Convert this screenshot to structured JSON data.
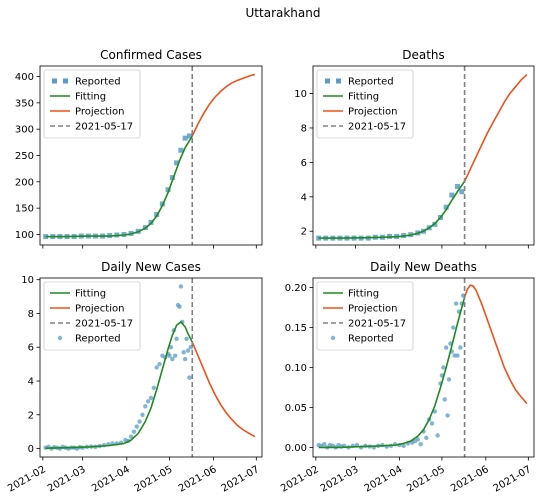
{
  "figure_title": "Uttarakhand",
  "x_tick_labels": [
    "2021-02",
    "2021-03",
    "2021-04",
    "2021-05",
    "2021-06",
    "2021-07"
  ],
  "colors": {
    "reported": "#5b9bc7",
    "fitting": "#1f8a1f",
    "projection": "#f0501a",
    "vline": "#808080"
  },
  "chart_data": [
    {
      "type": "line",
      "title": "Confirmed Cases",
      "ylim": [
        80,
        420
      ],
      "yticks": [
        100,
        150,
        200,
        250,
        300,
        350,
        400
      ],
      "xlim": [
        "2021-01-30",
        "2021-07-05"
      ],
      "vline": "2021-05-17",
      "legend": [
        "Reported",
        "Fitting",
        "Projection",
        "2021-05-17"
      ],
      "legend_position": "upper-left",
      "reported_style": "square",
      "series": [
        {
          "name": "Reported",
          "x": [
            "2021-02-03",
            "2021-02-08",
            "2021-02-13",
            "2021-02-18",
            "2021-02-23",
            "2021-02-28",
            "2021-03-05",
            "2021-03-10",
            "2021-03-15",
            "2021-03-20",
            "2021-03-25",
            "2021-03-30",
            "2021-04-04",
            "2021-04-09",
            "2021-04-14",
            "2021-04-18",
            "2021-04-22",
            "2021-04-26",
            "2021-04-30",
            "2021-05-03",
            "2021-05-06",
            "2021-05-09",
            "2021-05-12",
            "2021-05-15"
          ],
          "y": [
            96,
            96,
            96,
            96,
            96,
            97,
            97,
            97,
            97,
            98,
            99,
            100,
            102,
            106,
            113,
            123,
            138,
            158,
            185,
            208,
            236,
            260,
            283,
            287
          ]
        },
        {
          "name": "Fitting",
          "x": [
            "2021-02-03",
            "2021-02-18",
            "2021-03-05",
            "2021-03-20",
            "2021-03-30",
            "2021-04-04",
            "2021-04-09",
            "2021-04-14",
            "2021-04-18",
            "2021-04-22",
            "2021-04-26",
            "2021-04-30",
            "2021-05-04",
            "2021-05-08",
            "2021-05-12",
            "2021-05-17"
          ],
          "y": [
            96,
            96,
            97,
            97,
            99,
            101,
            105,
            112,
            121,
            135,
            155,
            180,
            210,
            240,
            265,
            287
          ]
        },
        {
          "name": "Projection",
          "x": [
            "2021-05-17",
            "2021-05-21",
            "2021-05-25",
            "2021-05-29",
            "2021-06-02",
            "2021-06-06",
            "2021-06-10",
            "2021-06-14",
            "2021-06-18",
            "2021-06-22",
            "2021-06-26",
            "2021-06-30"
          ],
          "y": [
            287,
            310,
            330,
            347,
            361,
            372,
            381,
            388,
            393,
            397,
            401,
            404
          ]
        }
      ]
    },
    {
      "type": "line",
      "title": "Deaths",
      "ylim": [
        1.2,
        11.6
      ],
      "yticks": [
        2,
        4,
        6,
        8,
        10
      ],
      "xlim": [
        "2021-01-30",
        "2021-07-05"
      ],
      "vline": "2021-05-17",
      "legend": [
        "Reported",
        "Fitting",
        "Projection",
        "2021-05-17"
      ],
      "legend_position": "upper-left",
      "reported_style": "square",
      "series": [
        {
          "name": "Reported",
          "x": [
            "2021-02-03",
            "2021-02-08",
            "2021-02-13",
            "2021-02-18",
            "2021-02-23",
            "2021-02-28",
            "2021-03-05",
            "2021-03-10",
            "2021-03-15",
            "2021-03-20",
            "2021-03-25",
            "2021-03-30",
            "2021-04-04",
            "2021-04-09",
            "2021-04-14",
            "2021-04-18",
            "2021-04-22",
            "2021-04-26",
            "2021-04-30",
            "2021-05-04",
            "2021-05-08",
            "2021-05-12",
            "2021-05-15"
          ],
          "y": [
            1.6,
            1.6,
            1.6,
            1.6,
            1.6,
            1.6,
            1.6,
            1.6,
            1.65,
            1.65,
            1.7,
            1.7,
            1.75,
            1.8,
            1.9,
            2.0,
            2.2,
            2.4,
            2.8,
            3.4,
            4.1,
            4.6,
            4.3
          ]
        },
        {
          "name": "Fitting",
          "x": [
            "2021-02-03",
            "2021-02-18",
            "2021-03-05",
            "2021-03-20",
            "2021-03-30",
            "2021-04-04",
            "2021-04-09",
            "2021-04-14",
            "2021-04-18",
            "2021-04-22",
            "2021-04-26",
            "2021-04-30",
            "2021-05-04",
            "2021-05-08",
            "2021-05-12",
            "2021-05-17"
          ],
          "y": [
            1.6,
            1.6,
            1.62,
            1.65,
            1.68,
            1.72,
            1.78,
            1.88,
            2.0,
            2.2,
            2.45,
            2.8,
            3.25,
            3.8,
            4.3,
            4.9
          ]
        },
        {
          "name": "Projection",
          "x": [
            "2021-05-17",
            "2021-05-21",
            "2021-05-25",
            "2021-05-29",
            "2021-06-02",
            "2021-06-06",
            "2021-06-10",
            "2021-06-14",
            "2021-06-18",
            "2021-06-22",
            "2021-06-26",
            "2021-06-30"
          ],
          "y": [
            4.9,
            5.6,
            6.3,
            7.0,
            7.7,
            8.3,
            8.9,
            9.5,
            10.0,
            10.4,
            10.8,
            11.1
          ]
        }
      ]
    },
    {
      "type": "line",
      "title": "Daily New Cases",
      "ylim": [
        -0.5,
        10.1
      ],
      "yticks": [
        0,
        2,
        4,
        6,
        8,
        10
      ],
      "xlim": [
        "2021-01-30",
        "2021-07-05"
      ],
      "vline": "2021-05-17",
      "legend": [
        "Fitting",
        "Projection",
        "2021-05-17",
        "Reported"
      ],
      "legend_position": "upper-left",
      "reported_style": "dot",
      "series": [
        {
          "name": "Reported",
          "x": [
            "2021-02-03",
            "2021-02-05",
            "2021-02-07",
            "2021-02-09",
            "2021-02-11",
            "2021-02-13",
            "2021-02-15",
            "2021-02-17",
            "2021-02-19",
            "2021-02-21",
            "2021-02-23",
            "2021-02-25",
            "2021-02-27",
            "2021-03-01",
            "2021-03-04",
            "2021-03-07",
            "2021-03-10",
            "2021-03-13",
            "2021-03-16",
            "2021-03-19",
            "2021-03-22",
            "2021-03-25",
            "2021-03-28",
            "2021-03-31",
            "2021-04-02",
            "2021-04-04",
            "2021-04-06",
            "2021-04-08",
            "2021-04-10",
            "2021-04-12",
            "2021-04-14",
            "2021-04-16",
            "2021-04-18",
            "2021-04-20",
            "2021-04-22",
            "2021-04-24",
            "2021-04-26",
            "2021-04-28",
            "2021-04-30",
            "2021-05-01",
            "2021-05-02",
            "2021-05-03",
            "2021-05-04",
            "2021-05-05",
            "2021-05-06",
            "2021-05-07",
            "2021-05-08",
            "2021-05-09",
            "2021-05-10",
            "2021-05-11",
            "2021-05-12",
            "2021-05-13",
            "2021-05-14",
            "2021-05-15",
            "2021-05-16"
          ],
          "y": [
            0.05,
            0.1,
            0.0,
            0.08,
            0.05,
            0.0,
            0.1,
            0.05,
            0.0,
            0.06,
            0.05,
            0.0,
            0.08,
            0.05,
            0.1,
            0.12,
            0.1,
            0.15,
            0.2,
            0.25,
            0.3,
            0.3,
            0.35,
            0.5,
            0.45,
            0.7,
            1.0,
            1.3,
            1.6,
            2.0,
            2.5,
            2.8,
            3.0,
            3.6,
            4.8,
            5.0,
            5.5,
            5.4,
            5.6,
            5.5,
            6.0,
            5.3,
            7.0,
            5.5,
            6.5,
            8.5,
            8.4,
            9.6,
            7.5,
            5.7,
            5.3,
            6.5,
            5.8,
            4.2,
            6.0
          ]
        },
        {
          "name": "Fitting",
          "x": [
            "2021-02-03",
            "2021-02-18",
            "2021-03-05",
            "2021-03-20",
            "2021-03-30",
            "2021-04-04",
            "2021-04-09",
            "2021-04-14",
            "2021-04-18",
            "2021-04-22",
            "2021-04-26",
            "2021-04-30",
            "2021-05-03",
            "2021-05-06",
            "2021-05-09",
            "2021-05-12",
            "2021-05-14",
            "2021-05-17"
          ],
          "y": [
            0.02,
            0.05,
            0.1,
            0.18,
            0.3,
            0.5,
            0.9,
            1.6,
            2.4,
            3.5,
            4.7,
            5.9,
            6.7,
            7.3,
            7.5,
            7.2,
            6.8,
            6.3
          ]
        },
        {
          "name": "Projection",
          "x": [
            "2021-05-17",
            "2021-05-21",
            "2021-05-25",
            "2021-05-29",
            "2021-06-02",
            "2021-06-06",
            "2021-06-10",
            "2021-06-14",
            "2021-06-18",
            "2021-06-22",
            "2021-06-26",
            "2021-06-30"
          ],
          "y": [
            6.3,
            5.5,
            4.7,
            3.9,
            3.2,
            2.6,
            2.1,
            1.7,
            1.35,
            1.1,
            0.9,
            0.7
          ]
        }
      ]
    },
    {
      "type": "line",
      "title": "Daily New Deaths",
      "ylim": [
        -0.012,
        0.212
      ],
      "yticks": [
        0.0,
        0.05,
        0.1,
        0.15,
        0.2
      ],
      "xlim": [
        "2021-01-30",
        "2021-07-05"
      ],
      "vline": "2021-05-17",
      "legend": [
        "Fitting",
        "Projection",
        "2021-05-17",
        "Reported"
      ],
      "legend_position": "upper-left",
      "reported_style": "dot",
      "series": [
        {
          "name": "Reported",
          "x": [
            "2021-02-03",
            "2021-02-05",
            "2021-02-07",
            "2021-02-09",
            "2021-02-11",
            "2021-02-13",
            "2021-02-15",
            "2021-02-17",
            "2021-02-19",
            "2021-02-21",
            "2021-02-24",
            "2021-02-27",
            "2021-03-02",
            "2021-03-05",
            "2021-03-08",
            "2021-03-11",
            "2021-03-14",
            "2021-03-17",
            "2021-03-20",
            "2021-03-23",
            "2021-03-26",
            "2021-03-29",
            "2021-04-01",
            "2021-04-04",
            "2021-04-07",
            "2021-04-10",
            "2021-04-12",
            "2021-04-14",
            "2021-04-16",
            "2021-04-18",
            "2021-04-20",
            "2021-04-22",
            "2021-04-24",
            "2021-04-26",
            "2021-04-28",
            "2021-04-30",
            "2021-05-01",
            "2021-05-02",
            "2021-05-03",
            "2021-05-04",
            "2021-05-05",
            "2021-05-06",
            "2021-05-07",
            "2021-05-08",
            "2021-05-09",
            "2021-05-10",
            "2021-05-11",
            "2021-05-12",
            "2021-05-13",
            "2021-05-14",
            "2021-05-15",
            "2021-05-16"
          ],
          "y": [
            0.003,
            0.002,
            0.004,
            0.0,
            0.003,
            0.002,
            0.0,
            0.003,
            0.001,
            0.002,
            0.0,
            0.002,
            0.003,
            0.0,
            0.002,
            0.001,
            0.0,
            0.002,
            0.003,
            0.001,
            0.002,
            0.004,
            0.003,
            0.002,
            0.005,
            0.006,
            0.008,
            0.01,
            0.004,
            0.02,
            0.012,
            0.035,
            0.03,
            0.045,
            0.015,
            0.08,
            0.09,
            0.1,
            0.06,
            0.125,
            0.04,
            0.085,
            0.13,
            0.12,
            0.15,
            0.115,
            0.18,
            0.115,
            0.17,
            0.125,
            0.18,
            0.19
          ]
        },
        {
          "name": "Fitting",
          "x": [
            "2021-02-03",
            "2021-02-18",
            "2021-03-05",
            "2021-03-20",
            "2021-03-30",
            "2021-04-04",
            "2021-04-09",
            "2021-04-14",
            "2021-04-18",
            "2021-04-22",
            "2021-04-26",
            "2021-04-30",
            "2021-05-04",
            "2021-05-08",
            "2021-05-12",
            "2021-05-17"
          ],
          "y": [
            0.0,
            0.0,
            0.001,
            0.002,
            0.003,
            0.005,
            0.008,
            0.014,
            0.022,
            0.035,
            0.052,
            0.075,
            0.1,
            0.127,
            0.155,
            0.188
          ]
        },
        {
          "name": "Projection",
          "x": [
            "2021-05-17",
            "2021-05-19",
            "2021-05-21",
            "2021-05-23",
            "2021-05-25",
            "2021-05-29",
            "2021-06-02",
            "2021-06-06",
            "2021-06-10",
            "2021-06-14",
            "2021-06-18",
            "2021-06-22",
            "2021-06-26",
            "2021-06-30"
          ],
          "y": [
            0.188,
            0.198,
            0.203,
            0.202,
            0.197,
            0.18,
            0.16,
            0.14,
            0.12,
            0.1,
            0.085,
            0.072,
            0.063,
            0.055
          ]
        }
      ]
    }
  ]
}
